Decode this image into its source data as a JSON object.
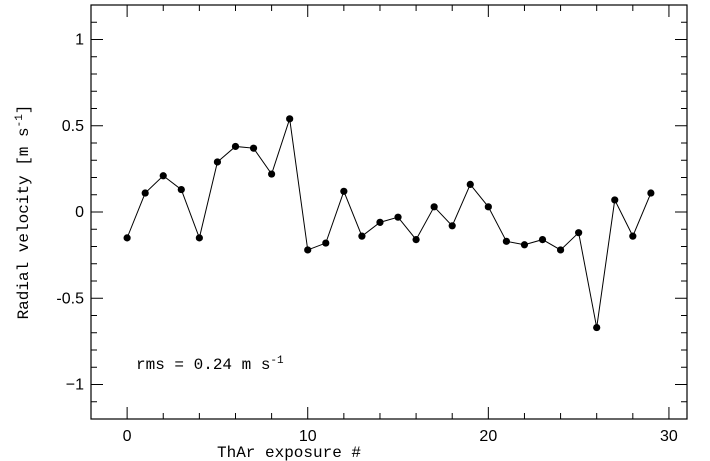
{
  "chart_data": {
    "type": "scatter",
    "connected": true,
    "title": "",
    "xlabel": "ThAr exposure #",
    "ylabel_main": "Radial velocity [m s",
    "ylabel_sup": "-1",
    "ylabel_end": "]",
    "xlim": [
      -2,
      31
    ],
    "ylim": [
      -1.2,
      1.2
    ],
    "xticks": [
      0,
      10,
      20,
      30
    ],
    "yticks": [
      1,
      0.5,
      0,
      -0.5,
      -1
    ],
    "ytick_labels": [
      "1",
      "0.5",
      "0",
      "-0.5",
      "−1"
    ],
    "grid": false,
    "legend": "none",
    "annotation_main": "rms = 0.24 m s",
    "annotation_sup": "-1",
    "color": "#000000",
    "x": [
      0,
      1,
      2,
      3,
      4,
      5,
      6,
      7,
      8,
      9,
      10,
      11,
      12,
      13,
      14,
      15,
      16,
      17,
      18,
      19,
      20,
      21,
      22,
      23,
      24,
      25,
      26,
      27,
      28,
      29
    ],
    "y": [
      -0.15,
      0.11,
      0.21,
      0.13,
      -0.15,
      0.29,
      0.38,
      0.37,
      0.22,
      0.54,
      -0.22,
      -0.18,
      0.12,
      -0.14,
      -0.06,
      -0.03,
      -0.16,
      0.03,
      -0.08,
      0.16,
      0.03,
      -0.17,
      -0.19,
      -0.16,
      -0.22,
      -0.12,
      -0.67,
      0.07,
      -0.14,
      0.11
    ]
  }
}
